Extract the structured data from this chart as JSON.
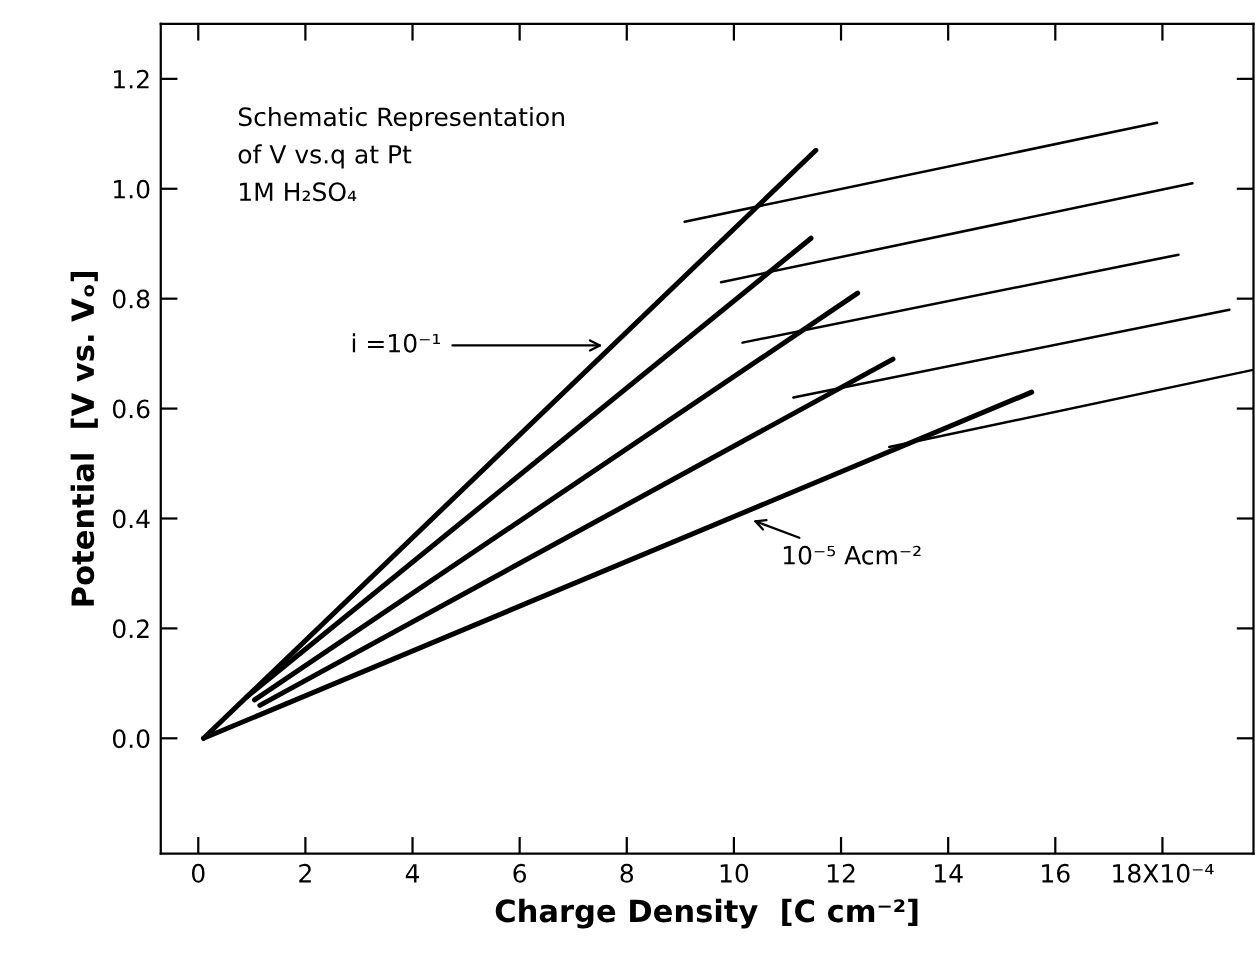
{
  "chart_data": {
    "type": "line",
    "xlabel": "Charge Density  [C cm⁻²]",
    "ylabel": "Potential  [V vs. Vₒ]",
    "xlim": [
      -0.7,
      19.7
    ],
    "ylim": [
      -0.21,
      1.3
    ],
    "xticks": [
      0,
      2,
      4,
      6,
      8,
      10,
      12,
      14,
      16,
      {
        "value": 18,
        "label": "18X10⁻⁴"
      }
    ],
    "yticks": [
      {
        "value": 0,
        "label": "0.0"
      },
      {
        "value": 0.2,
        "label": "0.2"
      },
      {
        "value": 0.4,
        "label": "0.4"
      },
      {
        "value": 0.6,
        "label": "0.6"
      },
      {
        "value": 0.8,
        "label": "0.8"
      },
      {
        "value": 1.0,
        "label": "1.0"
      },
      {
        "value": 1.2,
        "label": "1.2"
      }
    ],
    "series": [
      {
        "color": "#000000",
        "x": [
          0.1,
          11.53
        ],
        "values": [
          0.0,
          1.07
        ]
      },
      {
        "color": "#000000",
        "x": [
          0.9,
          11.44
        ],
        "values": [
          0.075,
          0.91
        ]
      },
      {
        "color": "#000000",
        "x": [
          1.05,
          12.31
        ],
        "values": [
          0.07,
          0.81
        ]
      },
      {
        "color": "#000000",
        "x": [
          1.15,
          12.97
        ],
        "values": [
          0.06,
          0.69
        ]
      },
      {
        "color": "#000000",
        "x": [
          0.1,
          15.56
        ],
        "values": [
          0.0,
          0.63
        ]
      },
      {
        "color": "#000000",
        "x": [
          9.08,
          17.9
        ],
        "values": [
          0.94,
          1.12
        ]
      },
      {
        "color": "#000000",
        "x": [
          9.76,
          18.56
        ],
        "values": [
          0.83,
          1.01
        ]
      },
      {
        "color": "#000000",
        "x": [
          10.16,
          18.3
        ],
        "values": [
          0.72,
          0.88
        ]
      },
      {
        "color": "#000000",
        "x": [
          11.11,
          19.25
        ],
        "values": [
          0.62,
          0.78
        ]
      },
      {
        "color": "#000000",
        "x": [
          12.9,
          19.67
        ],
        "values": [
          0.53,
          0.67
        ]
      }
    ],
    "annotations": [
      "Schematic Representation\nof V vs.q at Pt\n1M H₂SO₄",
      {
        "text": "i =10⁻¹",
        "x": 7.65,
        "y": 0.715
      },
      {
        "text": "10⁻⁵ Acm⁻²",
        "x": 10.26,
        "y": 0.4
      }
    ]
  }
}
